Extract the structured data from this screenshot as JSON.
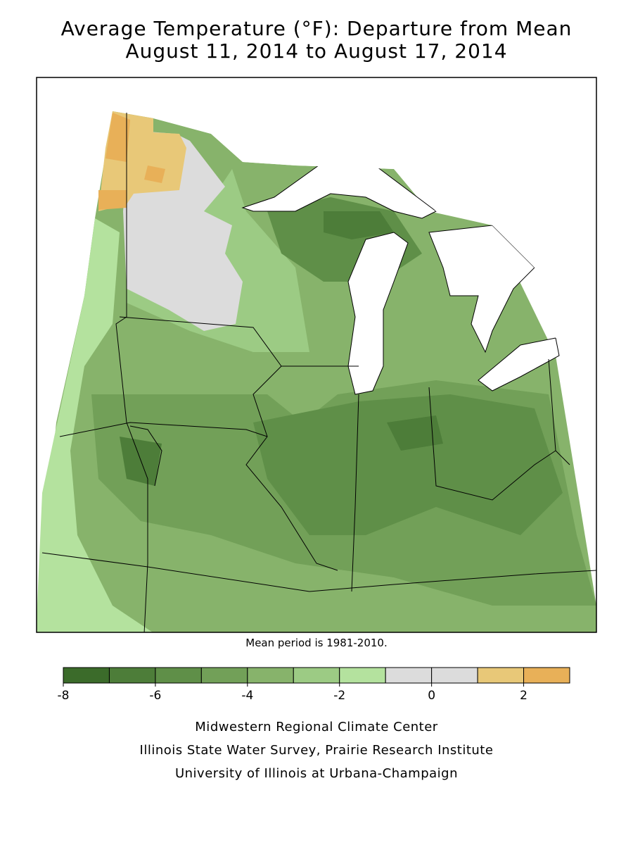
{
  "header": {
    "title": "Average Temperature (°F): Departure from Mean",
    "subtitle": "August 11, 2014 to August 17, 2014"
  },
  "note": "Mean period is 1981-2010.",
  "legend": {
    "bins": [
      -8,
      -7,
      -6,
      -5,
      -4,
      -3,
      -2,
      -1,
      0,
      1,
      2,
      3
    ],
    "colors": [
      "#3b6b2a",
      "#4d7d39",
      "#5f8f48",
      "#72a058",
      "#87b36b",
      "#9ccb84",
      "#b4e29e",
      "#dcdcdc",
      "#dcdcdc",
      "#e8c878",
      "#e8b058"
    ],
    "ticks": [
      -8,
      -6,
      -4,
      -2,
      0,
      2
    ]
  },
  "credits": [
    "Midwestern Regional Climate Center",
    "Illinois State Water Survey, Prairie Research Institute",
    "University of Illinois at Urbana-Champaign"
  ]
}
